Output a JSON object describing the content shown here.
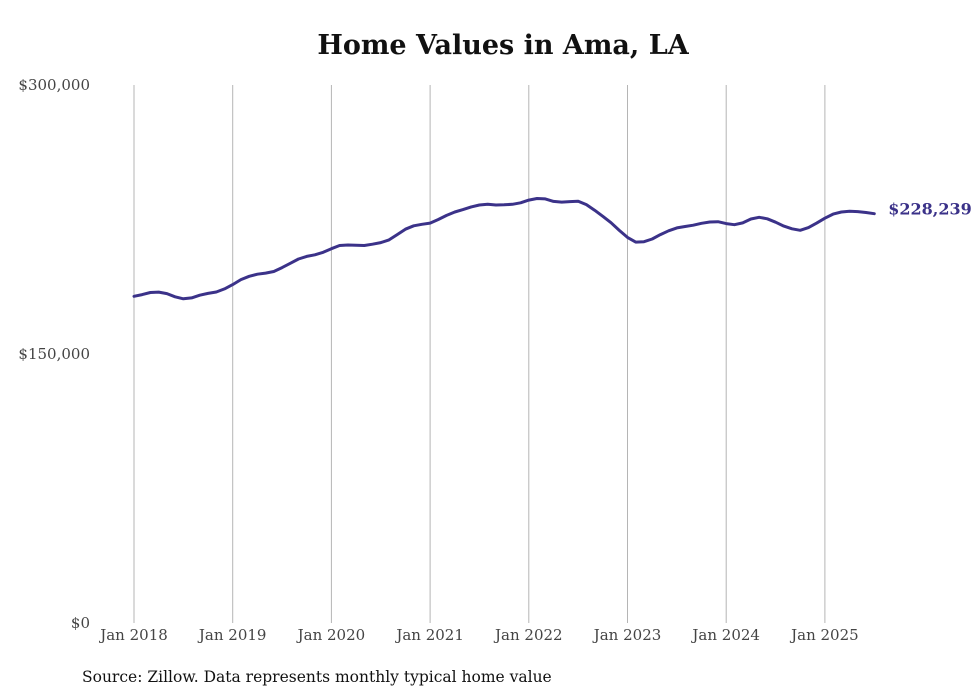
{
  "colors": {
    "line": "#3b3289",
    "grid": "#b5b5b5",
    "text": "#444444"
  },
  "chart_data": {
    "type": "line",
    "title": "Home Values in Ama, LA",
    "xlabel": "",
    "ylabel": "",
    "ylim": [
      0,
      300000
    ],
    "y_ticks": [
      {
        "value": 0,
        "label": "$0"
      },
      {
        "value": 150000,
        "label": "$150,000"
      },
      {
        "value": 300000,
        "label": "$300,000"
      }
    ],
    "x_ticks": [
      "Jan 2018",
      "Jan 2019",
      "Jan 2020",
      "Jan 2021",
      "Jan 2022",
      "Jan 2023",
      "Jan 2024",
      "Jan 2025"
    ],
    "grid": "vertical",
    "end_label": "$228,239",
    "series": [
      {
        "values": [
          [
            "2018-01",
            182200
          ],
          [
            "2018-02",
            183100
          ],
          [
            "2018-03",
            184300
          ],
          [
            "2018-04",
            184500
          ],
          [
            "2018-05",
            183700
          ],
          [
            "2018-06",
            181900
          ],
          [
            "2018-07",
            180800
          ],
          [
            "2018-08",
            181300
          ],
          [
            "2018-09",
            182800
          ],
          [
            "2018-10",
            183800
          ],
          [
            "2018-11",
            184600
          ],
          [
            "2018-12",
            186300
          ],
          [
            "2019-01",
            188700
          ],
          [
            "2019-02",
            191500
          ],
          [
            "2019-03",
            193300
          ],
          [
            "2019-04",
            194500
          ],
          [
            "2019-05",
            195100
          ],
          [
            "2019-06",
            196000
          ],
          [
            "2019-07",
            198200
          ],
          [
            "2019-08",
            200600
          ],
          [
            "2019-09",
            203000
          ],
          [
            "2019-10",
            204400
          ],
          [
            "2019-11",
            205300
          ],
          [
            "2019-12",
            206700
          ],
          [
            "2020-01",
            208700
          ],
          [
            "2020-02",
            210500
          ],
          [
            "2020-03",
            210800
          ],
          [
            "2020-04",
            210600
          ],
          [
            "2020-05",
            210500
          ],
          [
            "2020-06",
            211200
          ],
          [
            "2020-07",
            212100
          ],
          [
            "2020-08",
            213600
          ],
          [
            "2020-09",
            216600
          ],
          [
            "2020-10",
            219600
          ],
          [
            "2020-11",
            221500
          ],
          [
            "2020-12",
            222300
          ],
          [
            "2021-01",
            223000
          ],
          [
            "2021-02",
            225000
          ],
          [
            "2021-03",
            227300
          ],
          [
            "2021-04",
            229200
          ],
          [
            "2021-05",
            230500
          ],
          [
            "2021-06",
            232000
          ],
          [
            "2021-07",
            233100
          ],
          [
            "2021-08",
            233500
          ],
          [
            "2021-09",
            233100
          ],
          [
            "2021-10",
            233200
          ],
          [
            "2021-11",
            233500
          ],
          [
            "2021-12",
            234300
          ],
          [
            "2022-01",
            235800
          ],
          [
            "2022-02",
            236700
          ],
          [
            "2022-03",
            236500
          ],
          [
            "2022-04",
            235100
          ],
          [
            "2022-05",
            234700
          ],
          [
            "2022-06",
            235000
          ],
          [
            "2022-07",
            235200
          ],
          [
            "2022-08",
            233300
          ],
          [
            "2022-09",
            230200
          ],
          [
            "2022-10",
            226800
          ],
          [
            "2022-11",
            223200
          ],
          [
            "2022-12",
            218900
          ],
          [
            "2023-01",
            215000
          ],
          [
            "2023-02",
            212400
          ],
          [
            "2023-03",
            212600
          ],
          [
            "2023-04",
            214100
          ],
          [
            "2023-05",
            216600
          ],
          [
            "2023-06",
            218700
          ],
          [
            "2023-07",
            220300
          ],
          [
            "2023-08",
            221100
          ],
          [
            "2023-09",
            221800
          ],
          [
            "2023-10",
            222900
          ],
          [
            "2023-11",
            223600
          ],
          [
            "2023-12",
            223800
          ],
          [
            "2024-01",
            222700
          ],
          [
            "2024-02",
            222100
          ],
          [
            "2024-03",
            223100
          ],
          [
            "2024-04",
            225300
          ],
          [
            "2024-05",
            226200
          ],
          [
            "2024-06",
            225400
          ],
          [
            "2024-07",
            223500
          ],
          [
            "2024-08",
            221300
          ],
          [
            "2024-09",
            219800
          ],
          [
            "2024-10",
            219000
          ],
          [
            "2024-11",
            220500
          ],
          [
            "2024-12",
            223000
          ],
          [
            "2025-01",
            225700
          ],
          [
            "2025-02",
            228000
          ],
          [
            "2025-03",
            229200
          ],
          [
            "2025-04",
            229600
          ],
          [
            "2025-05",
            229400
          ],
          [
            "2025-06",
            228900
          ],
          [
            "2025-07",
            228239
          ]
        ]
      }
    ]
  },
  "footer": {
    "source": "Source: Zillow. Data represents monthly typical home value"
  }
}
